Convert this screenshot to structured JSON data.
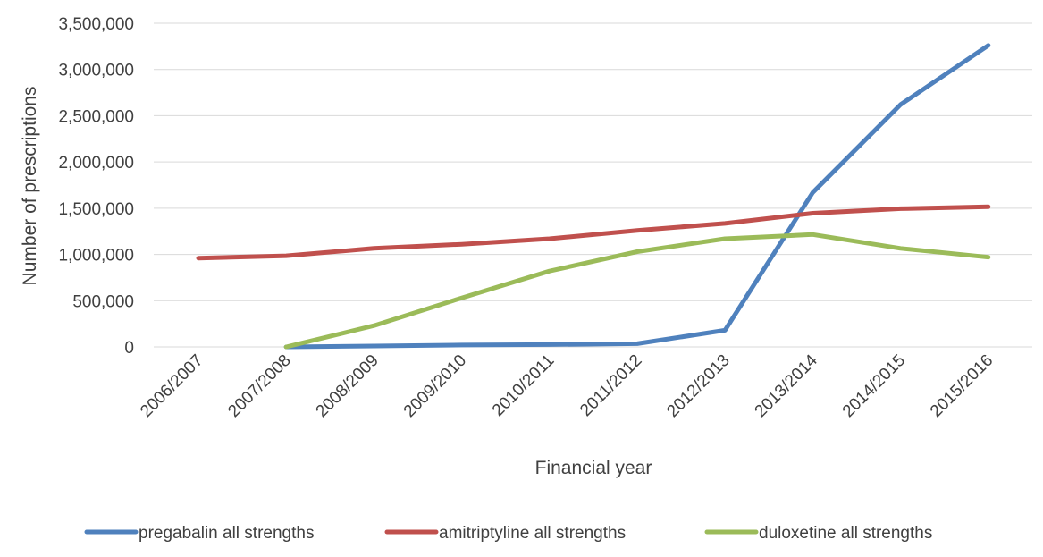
{
  "chart_data": {
    "type": "line",
    "title": "",
    "xlabel": "Financial year",
    "ylabel": "Number of prescriptions",
    "ylim": [
      0,
      3500000
    ],
    "ytick_step": 500000,
    "ytick_labels": [
      "0",
      "500,000",
      "1,000,000",
      "1,500,000",
      "2,000,000",
      "2,500,000",
      "3,000,000",
      "3,500,000"
    ],
    "grid": true,
    "legend_position": "bottom",
    "categories": [
      "2006/2007",
      "2007/2008",
      "2008/2009",
      "2009/2010",
      "2010/2011",
      "2011/2012",
      "2012/2013",
      "2013/2014",
      "2014/2015",
      "2015/2016"
    ],
    "series": [
      {
        "name": "pregabalin all strengths",
        "color": "#4f81bd",
        "values": [
          null,
          0,
          10000,
          20000,
          25000,
          35000,
          180000,
          1670000,
          2620000,
          3260000
        ]
      },
      {
        "name": "amitriptyline all strengths",
        "color": "#c0504d",
        "values": [
          960000,
          985000,
          1065000,
          1110000,
          1170000,
          1260000,
          1335000,
          1445000,
          1495000,
          1515000
        ]
      },
      {
        "name": "duloxetine all strengths",
        "color": "#9bbb59",
        "values": [
          null,
          0,
          230000,
          530000,
          820000,
          1030000,
          1170000,
          1215000,
          1065000,
          970000
        ]
      }
    ]
  }
}
